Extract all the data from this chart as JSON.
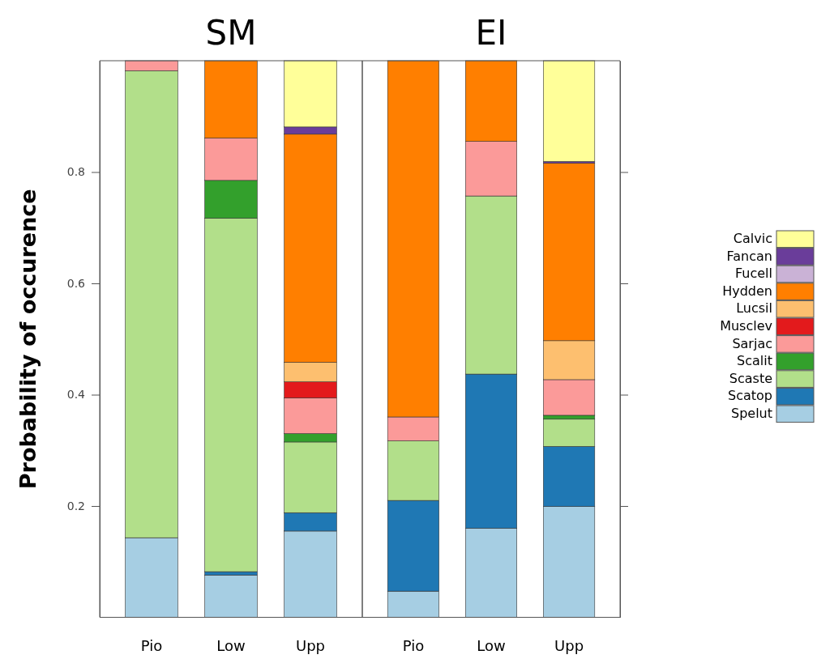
{
  "chart_data": [
    {
      "type": "bar",
      "title": "SM",
      "ylabel": "Probability of occurence",
      "categories": [
        "Pio",
        "Low",
        "Upp"
      ],
      "stacked": true,
      "legend": false,
      "ylim": [
        0,
        1
      ],
      "yticks": [
        0.2,
        0.4,
        0.6,
        0.8
      ],
      "series": [
        {
          "color": "#a6cee3",
          "values": [
            0.143,
            0.076,
            0.155
          ]
        },
        {
          "color": "#1f78b4",
          "values": [
            0,
            0.006,
            0.033
          ]
        },
        {
          "color": "#b2df8a",
          "values": [
            0.839,
            0.635,
            0.127
          ]
        },
        {
          "color": "#33a02c",
          "values": [
            0,
            0.068,
            0.015
          ]
        },
        {
          "color": "#fb9a99",
          "values": [
            0.018,
            0.076,
            0.064
          ]
        },
        {
          "color": "#e31a1c",
          "values": [
            0,
            0,
            0.029
          ]
        },
        {
          "color": "#fdbf6f",
          "values": [
            0,
            0,
            0.035
          ]
        },
        {
          "color": "#ff7f00",
          "values": [
            0,
            0.139,
            0.41
          ]
        },
        {
          "color": "#cab2d6",
          "values": [
            0,
            0,
            0
          ]
        },
        {
          "color": "#6a3d9a",
          "values": [
            0,
            0,
            0.013
          ]
        },
        {
          "color": "#ffff99",
          "values": [
            0,
            0,
            0.119
          ]
        }
      ]
    },
    {
      "type": "bar",
      "title": "EI",
      "categories": [
        "Pio",
        "Low",
        "Upp"
      ],
      "stacked": true,
      "legend": "right",
      "tick_labels": "x",
      "ylim": [
        0,
        1
      ],
      "yticks": [
        0.2,
        0.4,
        0.6,
        0.8
      ],
      "series": [
        {
          "name": "Spelut",
          "color": "#a6cee3",
          "values": [
            0.047,
            0.16,
            0.199
          ]
        },
        {
          "name": "Scatop",
          "color": "#1f78b4",
          "values": [
            0.163,
            0.277,
            0.108
          ]
        },
        {
          "name": "Scaste",
          "color": "#b2df8a",
          "values": [
            0.107,
            0.32,
            0.049
          ]
        },
        {
          "name": "Scalit",
          "color": "#33a02c",
          "values": [
            0,
            0,
            0.007
          ]
        },
        {
          "name": "Sarjac",
          "color": "#fb9a99",
          "values": [
            0.043,
            0.098,
            0.064
          ]
        },
        {
          "name": "Musclev",
          "color": "#e31a1c",
          "values": [
            0,
            0,
            0
          ]
        },
        {
          "name": "Lucsil",
          "color": "#fdbf6f",
          "values": [
            0,
            0,
            0.07
          ]
        },
        {
          "name": "Hydden",
          "color": "#ff7f00",
          "values": [
            0.64,
            0.145,
            0.319
          ]
        },
        {
          "name": "Fucell",
          "color": "#cab2d6",
          "values": [
            0,
            0,
            0
          ]
        },
        {
          "name": "Fancan",
          "color": "#6a3d9a",
          "values": [
            0,
            0,
            0.003
          ]
        },
        {
          "name": "Calvic",
          "color": "#ffff99",
          "values": [
            0,
            0,
            0.181
          ]
        }
      ]
    }
  ]
}
